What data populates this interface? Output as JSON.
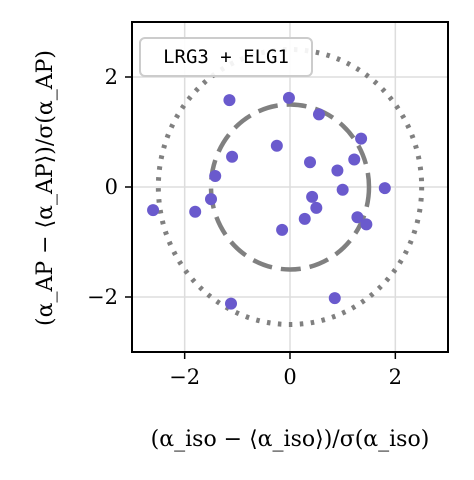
{
  "chart_data": {
    "type": "scatter",
    "title": "",
    "xlabel": "(α_iso − ⟨α_iso⟩)/σ(α_iso)",
    "ylabel": "(α_AP − ⟨α_AP⟩)/σ(α_AP)",
    "xlim": [
      -3,
      3
    ],
    "ylim": [
      -3,
      3
    ],
    "xticks": [
      -2,
      0,
      2
    ],
    "yticks": [
      -2,
      0,
      2
    ],
    "xtick_labels": [
      "−2",
      "0",
      "2"
    ],
    "ytick_labels": [
      "−2",
      "0",
      "2"
    ],
    "grid": true,
    "legend_position": "top-left",
    "label_box": "LRG3 + ELG1",
    "circles": [
      {
        "style": "dashed",
        "radius": 1.5
      },
      {
        "style": "dotted",
        "radius": 2.5
      }
    ],
    "series": [
      {
        "color": "#6a5acd",
        "points": [
          {
            "x": -2.6,
            "y": -0.42
          },
          {
            "x": -1.8,
            "y": -0.45
          },
          {
            "x": -1.5,
            "y": -0.22
          },
          {
            "x": -1.42,
            "y": 0.2
          },
          {
            "x": -1.15,
            "y": 1.58
          },
          {
            "x": -1.1,
            "y": 0.55
          },
          {
            "x": -1.12,
            "y": -2.12
          },
          {
            "x": -0.25,
            "y": 0.75
          },
          {
            "x": -0.15,
            "y": -0.78
          },
          {
            "x": -0.02,
            "y": 1.62
          },
          {
            "x": 0.28,
            "y": -0.58
          },
          {
            "x": 0.38,
            "y": 0.45
          },
          {
            "x": 0.42,
            "y": -0.18
          },
          {
            "x": 0.5,
            "y": -0.38
          },
          {
            "x": 0.55,
            "y": 1.32
          },
          {
            "x": 0.85,
            "y": -2.02
          },
          {
            "x": 0.9,
            "y": 0.3
          },
          {
            "x": 1.0,
            "y": -0.05
          },
          {
            "x": 1.22,
            "y": 0.5
          },
          {
            "x": 1.28,
            "y": -0.55
          },
          {
            "x": 1.35,
            "y": 0.88
          },
          {
            "x": 1.45,
            "y": -0.68
          },
          {
            "x": 1.8,
            "y": -0.02
          }
        ]
      }
    ]
  }
}
